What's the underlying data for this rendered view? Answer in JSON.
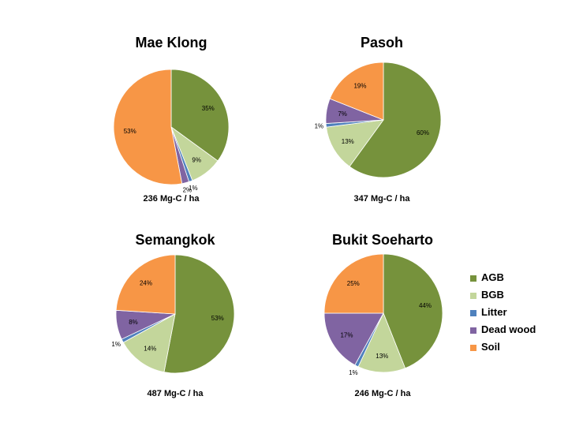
{
  "chart_data": [
    {
      "type": "pie",
      "title": "Mae Klong",
      "total_label": "236 Mg-C / ha",
      "categories": [
        "AGB",
        "BGB",
        "Litter",
        "Dead wood",
        "Soil"
      ],
      "values": [
        35,
        9,
        1,
        2,
        53
      ],
      "labels": [
        "35%",
        "9%",
        "1%",
        "2%",
        "53%"
      ]
    },
    {
      "type": "pie",
      "title": "Pasoh",
      "total_label": "347 Mg-C / ha",
      "categories": [
        "AGB",
        "BGB",
        "Litter",
        "Dead wood",
        "Soil"
      ],
      "values": [
        60,
        13,
        1,
        7,
        19
      ],
      "labels": [
        "60%",
        "13%",
        "1%",
        "7%",
        "19%"
      ]
    },
    {
      "type": "pie",
      "title": "Semangkok",
      "total_label": "487 Mg-C / ha",
      "categories": [
        "AGB",
        "BGB",
        "Litter",
        "Dead wood",
        "Soil"
      ],
      "values": [
        53,
        14,
        1,
        8,
        24
      ],
      "labels": [
        "53%",
        "14%",
        "1%",
        "8%",
        "24%"
      ]
    },
    {
      "type": "pie",
      "title": "Bukit Soeharto",
      "total_label": "246 Mg-C / ha",
      "categories": [
        "AGB",
        "BGB",
        "Litter",
        "Dead wood",
        "Soil"
      ],
      "values": [
        44,
        13,
        1,
        17,
        25
      ],
      "labels": [
        "44%",
        "13%",
        "1%",
        "17%",
        "25%"
      ]
    }
  ],
  "legend": {
    "placement": "right",
    "items": [
      {
        "label": "AGB",
        "color": "#76923c"
      },
      {
        "label": "BGB",
        "color": "#c3d69b"
      },
      {
        "label": "Litter",
        "color": "#4f81bd"
      },
      {
        "label": "Dead wood",
        "color": "#8064a2"
      },
      {
        "label": "Soil",
        "color": "#f79646"
      }
    ]
  }
}
